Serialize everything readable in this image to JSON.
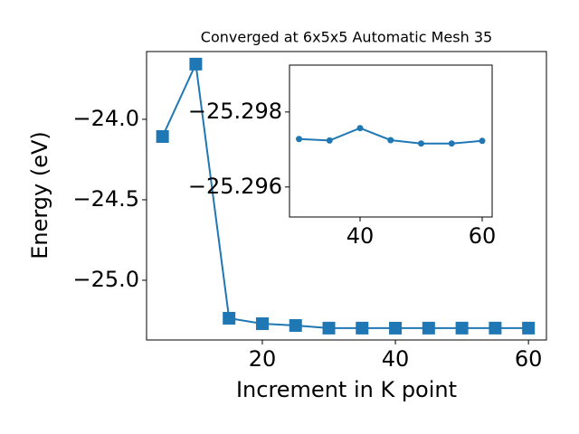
{
  "chart_data": [
    {
      "type": "line",
      "title": "Converged at 6x5x5 Automatic Mesh 35",
      "x_label": "Increment in K point",
      "y_label": "Energy (eV)",
      "x": [
        5,
        10,
        15,
        20,
        25,
        30,
        35,
        40,
        45,
        50,
        55,
        60
      ],
      "series": [
        {
          "color": "#1f77b4",
          "marker": "square",
          "values": [
            -24.107,
            -23.657,
            -25.236,
            -25.27,
            -25.281,
            -25.29728,
            -25.29724,
            -25.29757,
            -25.29725,
            -25.29716,
            -25.29716,
            -25.29723
          ]
        }
      ],
      "xlim": [
        2.6,
        62.7
      ],
      "ylim": [
        -25.371,
        -23.579
      ],
      "xticks": [
        20,
        40,
        60
      ],
      "yticks": [
        {
          "value": -25,
          "label": "−25.0"
        },
        {
          "value": -24.5,
          "label": "−24.5"
        },
        {
          "value": -24,
          "label": "−24.0"
        }
      ]
    },
    {
      "type": "line",
      "x": [
        30,
        35,
        40,
        45,
        50,
        55,
        60
      ],
      "series": [
        {
          "color": "#1f77b4",
          "marker": "circle",
          "values": [
            -25.29728,
            -25.29724,
            -25.29757,
            -25.29725,
            -25.29716,
            -25.29716,
            -25.29723
          ]
        }
      ],
      "xlim": [
        28.44,
        61.63
      ],
      "ylim": [
        -25.2952,
        -25.29925
      ],
      "xticks": [
        40,
        60
      ],
      "yticks": [
        {
          "value": -25.298,
          "label": "−25.298"
        },
        {
          "value": -25.296,
          "label": "−25.296"
        }
      ]
    }
  ]
}
